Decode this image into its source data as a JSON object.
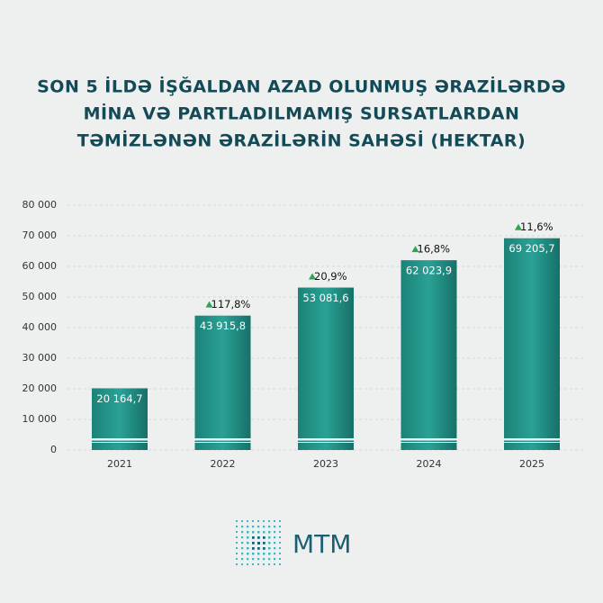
{
  "chart_data": {
    "type": "bar",
    "title_lines": [
      "SON 5 İLDƏ İŞĞALDAN AZAD OLUNMUŞ ƏRAZİLƏRDƏ",
      "MİNA VƏ PARTLADILMAMIŞ SURSATLARDAN",
      "TƏMİZLƏNƏN ƏRAZİLƏRİN SAHƏSİ (HEKTAR)"
    ],
    "categories": [
      "2021",
      "2022",
      "2023",
      "2024",
      "2025"
    ],
    "values": [
      20164.7,
      43915.8,
      53081.6,
      62023.9,
      69205.7
    ],
    "value_labels": [
      "20 164,7",
      "43 915,8",
      "53 081,6",
      "62 023,9",
      "69 205,7"
    ],
    "growth_labels": [
      null,
      "117,8%",
      "20,9%",
      "16,8%",
      "11,6%"
    ],
    "color": "#1f8f84",
    "ylim": [
      0,
      80000
    ],
    "yticks": [
      0,
      {
        "value": 10000,
        "label": "10 000"
      },
      {
        "value": 20000,
        "label": "20 000"
      },
      {
        "value": 30000,
        "label": "30 000"
      },
      {
        "value": 40000,
        "label": "40 000"
      },
      {
        "value": 50000,
        "label": "50 000"
      },
      {
        "value": 60000,
        "label": "60 000"
      },
      {
        "value": 70000,
        "label": "70 000"
      },
      {
        "value": 80000,
        "label": "80 000"
      }
    ],
    "grid": true,
    "logo": "MTM"
  }
}
